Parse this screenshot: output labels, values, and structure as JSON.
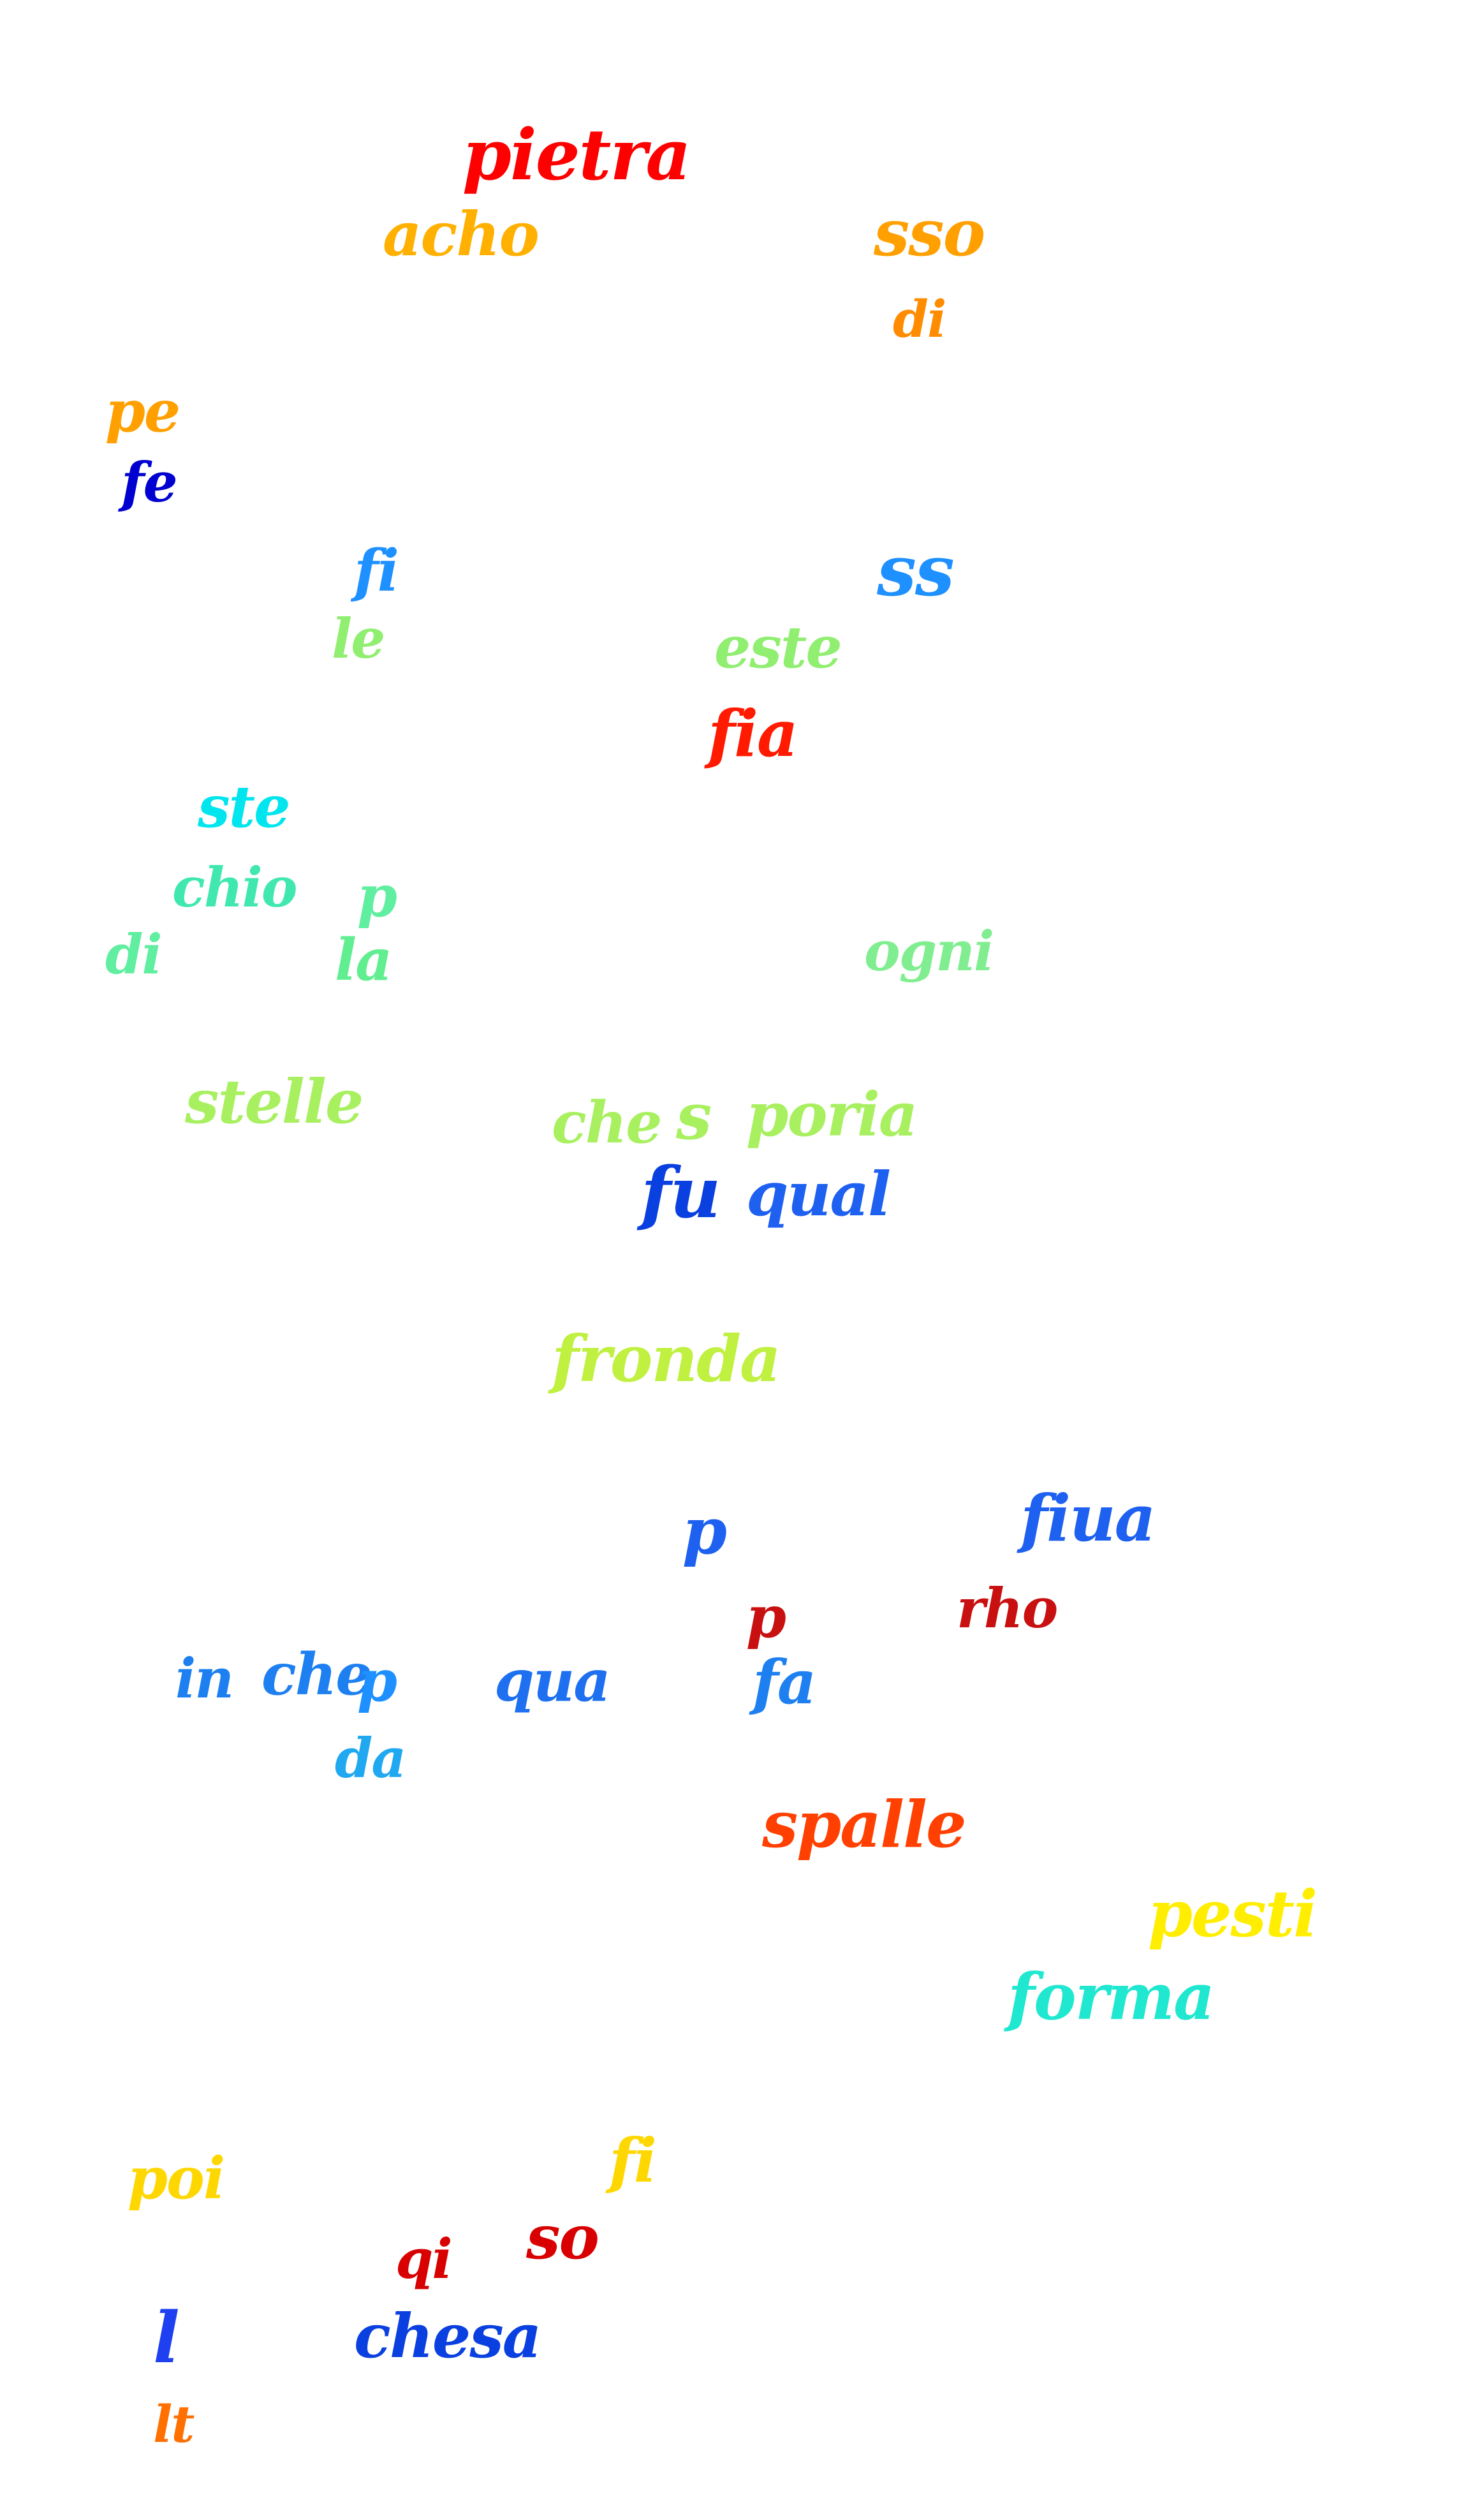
{
  "words": [
    {
      "text": "pietra",
      "color": "#ff0000"
    },
    {
      "text": "acho",
      "color": "#ffb000"
    },
    {
      "text": "sso",
      "color": "#ffa000"
    },
    {
      "text": "di",
      "color": "#ff8c00"
    },
    {
      "text": "pe",
      "color": "#ffa000"
    },
    {
      "text": "fe",
      "color": "#0000d0"
    },
    {
      "text": "fi",
      "color": "#1e90ff"
    },
    {
      "text": "le",
      "color": "#90ee70"
    },
    {
      "text": "ss",
      "color": "#1e90ff"
    },
    {
      "text": "este",
      "color": "#90ee70"
    },
    {
      "text": "fia",
      "color": "#ff1a00"
    },
    {
      "text": "ste",
      "color": "#00e5ee"
    },
    {
      "text": "chio",
      "color": "#40e8b0"
    },
    {
      "text": "di",
      "color": "#60eea0"
    },
    {
      "text": "p",
      "color": "#60eea0"
    },
    {
      "text": "la",
      "color": "#60ee90"
    },
    {
      "text": "ogni",
      "color": "#80ee90"
    },
    {
      "text": "stelle",
      "color": "#a8f060"
    },
    {
      "text": "che",
      "color": "#a8f060"
    },
    {
      "text": "s",
      "color": "#a8f060"
    },
    {
      "text": "poria",
      "color": "#a8f060"
    },
    {
      "text": "fu",
      "color": "#0a40e0"
    },
    {
      "text": "qual",
      "color": "#1e60f0"
    },
    {
      "text": "fronda",
      "color": "#c0f040"
    },
    {
      "text": "p",
      "color": "#1e60f0"
    },
    {
      "text": "fiua",
      "color": "#1e60f0"
    },
    {
      "text": "p",
      "color": "#c81010"
    },
    {
      "text": "rho",
      "color": "#c81010"
    },
    {
      "text": "in",
      "color": "#1e80f0"
    },
    {
      "text": "che",
      "color": "#1e80f0"
    },
    {
      "text": "p",
      "color": "#1e90ff"
    },
    {
      "text": "da",
      "color": "#20a8f0"
    },
    {
      "text": "qua",
      "color": "#1e70f0"
    },
    {
      "text": "fa",
      "color": "#1e80f0"
    },
    {
      "text": "spalle",
      "color": "#ff4000"
    },
    {
      "text": "pesti",
      "color": "#ffee00"
    },
    {
      "text": "forma",
      "color": "#20e8d0"
    },
    {
      "text": "poi",
      "color": "#ffd700"
    },
    {
      "text": "fi",
      "color": "#ffd700"
    },
    {
      "text": "qi",
      "color": "#d80000"
    },
    {
      "text": "so",
      "color": "#d80000"
    },
    {
      "text": "chesa",
      "color": "#0a40e0"
    },
    {
      "text": "l",
      "color": "#1e40f0"
    },
    {
      "text": "lt",
      "color": "#ff7000"
    }
  ]
}
